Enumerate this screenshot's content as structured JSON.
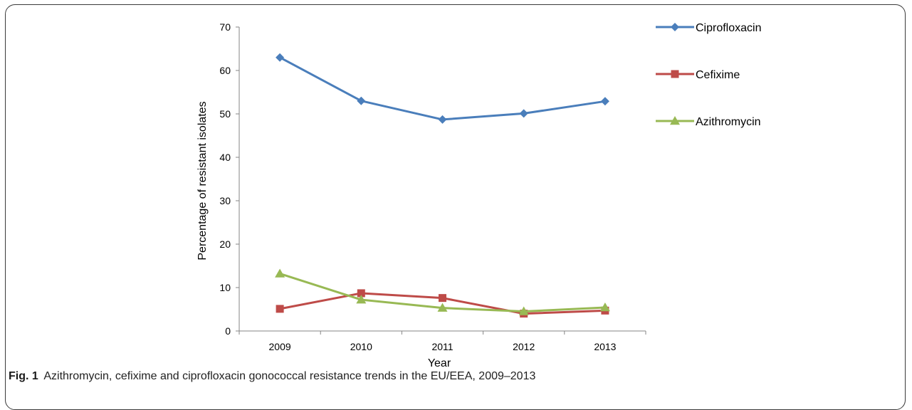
{
  "figure": {
    "label": "Fig. 1",
    "caption": "Azithromycin, cefixime and ciprofloxacin gonococcal resistance trends in the EU/EEA, 2009–2013"
  },
  "chart_data": {
    "type": "line",
    "title": "",
    "xlabel": "Year",
    "ylabel": "Percentage of resistant isolates",
    "categories": [
      "2009",
      "2010",
      "2011",
      "2012",
      "2013"
    ],
    "ylim": [
      0,
      70
    ],
    "yticks": [
      0,
      10,
      20,
      30,
      40,
      50,
      60,
      70
    ],
    "grid": false,
    "legend_position": "right",
    "series": [
      {
        "name": "Ciprofloxacin",
        "color": "#4a7ebb",
        "marker": "diamond",
        "values": [
          63.0,
          53.0,
          48.7,
          50.1,
          52.9
        ]
      },
      {
        "name": "Cefixime",
        "color": "#be4b48",
        "marker": "square",
        "values": [
          5.1,
          8.7,
          7.6,
          4.0,
          4.7
        ]
      },
      {
        "name": "Azithromycin",
        "color": "#98b954",
        "marker": "triangle",
        "values": [
          13.2,
          7.2,
          5.3,
          4.5,
          5.4
        ]
      }
    ]
  }
}
